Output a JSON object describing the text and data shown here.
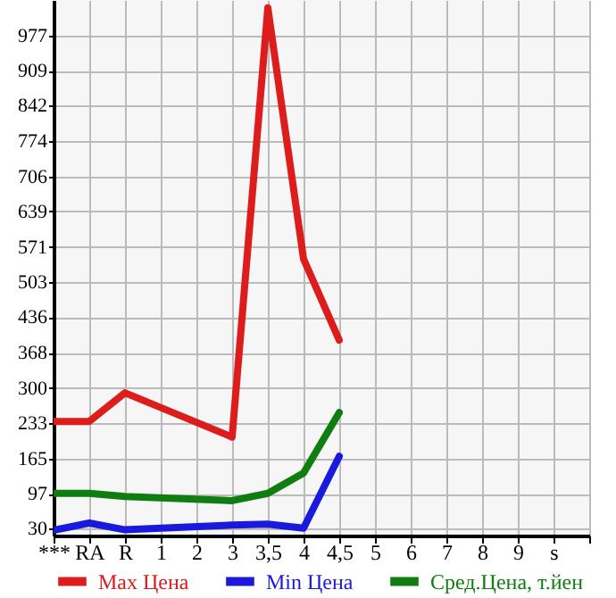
{
  "chart_data": {
    "type": "line",
    "categories": [
      "***",
      "RA",
      "R",
      "1",
      "2",
      "3",
      "3,5",
      "4",
      "4,5",
      "5",
      "6",
      "7",
      "8",
      "9",
      "s",
      null
    ],
    "series": [
      {
        "name": "Max Цена",
        "color": "#dd1c1c",
        "values": [
          236,
          236,
          291,
          null,
          null,
          206,
          1030,
          548,
          392,
          null,
          null,
          null,
          null,
          null,
          null,
          null
        ]
      },
      {
        "name": "Min Цена",
        "color": "#1a1adc",
        "values": [
          27,
          41,
          28,
          null,
          null,
          37,
          39,
          31,
          169,
          null,
          null,
          null,
          null,
          null,
          null,
          null
        ]
      },
      {
        "name": "Сред.Цена, т.йен",
        "color": "#107d10",
        "values": [
          98,
          98,
          92,
          null,
          null,
          84,
          98,
          137,
          253,
          null,
          null,
          null,
          null,
          null,
          null,
          null
        ]
      }
    ],
    "ylim": [
      17,
      1045
    ],
    "yticks": [
      30,
      97,
      165,
      233,
      300,
      368,
      436,
      503,
      571,
      639,
      706,
      774,
      842,
      909,
      977
    ],
    "grid": true,
    "legend": "bottom",
    "marker": "none",
    "line_style": "solid"
  }
}
